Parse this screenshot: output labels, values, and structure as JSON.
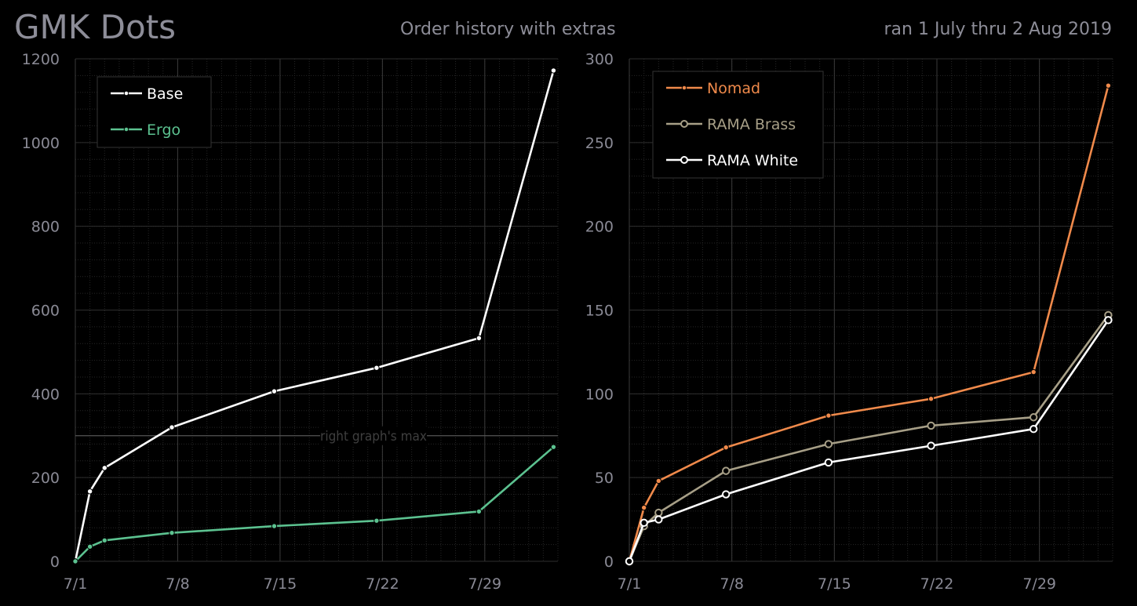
{
  "header": {
    "title": "GMK Dots",
    "subtitle": "Order history with extras",
    "date_range": "ran 1 July thru 2 Aug 2019"
  },
  "chart_data": [
    {
      "type": "line",
      "x_tick_labels": [
        "7/1",
        "7/8",
        "7/15",
        "7/22",
        "7/29"
      ],
      "x_tick_days": [
        1,
        8,
        15,
        22,
        29
      ],
      "xlim": [
        1,
        34
      ],
      "ylim": [
        0,
        1200
      ],
      "y_ticks": [
        0,
        200,
        400,
        600,
        800,
        1000,
        1200
      ],
      "grid": true,
      "legend_position": "top-left",
      "series": [
        {
          "name": "Base",
          "color": "#ffffff",
          "marker": "dot",
          "x": [
            1,
            2,
            3,
            7.6,
            14.6,
            21.6,
            28.6,
            33.7
          ],
          "y": [
            0,
            167,
            223,
            320,
            406,
            462,
            533,
            1172
          ]
        },
        {
          "name": "Ergo",
          "color": "#5cc290",
          "marker": "dot",
          "x": [
            1,
            2,
            3,
            7.6,
            14.6,
            21.6,
            28.6,
            33.7
          ],
          "y": [
            0,
            35,
            50,
            68,
            84,
            97,
            119,
            273
          ]
        }
      ],
      "reference_line": {
        "y": 300,
        "label": "right graph's max"
      }
    },
    {
      "type": "line",
      "x_tick_labels": [
        "7/1",
        "7/8",
        "7/15",
        "7/22",
        "7/29"
      ],
      "x_tick_days": [
        1,
        8,
        15,
        22,
        29
      ],
      "xlim": [
        1,
        34
      ],
      "ylim": [
        0,
        300
      ],
      "y_ticks": [
        0,
        50,
        100,
        150,
        200,
        250,
        300
      ],
      "grid": true,
      "legend_position": "top-left",
      "series": [
        {
          "name": "Nomad",
          "color": "#f08a4b",
          "marker": "dot",
          "x": [
            1,
            2,
            3,
            7.6,
            14.6,
            21.6,
            28.6,
            33.7
          ],
          "y": [
            0,
            32,
            48,
            68,
            87,
            97,
            113,
            284
          ]
        },
        {
          "name": "RAMA Brass",
          "color": "#a79f87",
          "marker": "ring",
          "x": [
            1,
            2,
            3,
            7.6,
            14.6,
            21.6,
            28.6,
            33.7
          ],
          "y": [
            0,
            21,
            29,
            54,
            70,
            81,
            86,
            147
          ]
        },
        {
          "name": "RAMA White",
          "color": "#ffffff",
          "marker": "ring",
          "x": [
            1,
            2,
            3,
            7.6,
            14.6,
            21.6,
            28.6,
            33.7
          ],
          "y": [
            0,
            23,
            25,
            40,
            59,
            69,
            79,
            144
          ]
        }
      ]
    }
  ]
}
